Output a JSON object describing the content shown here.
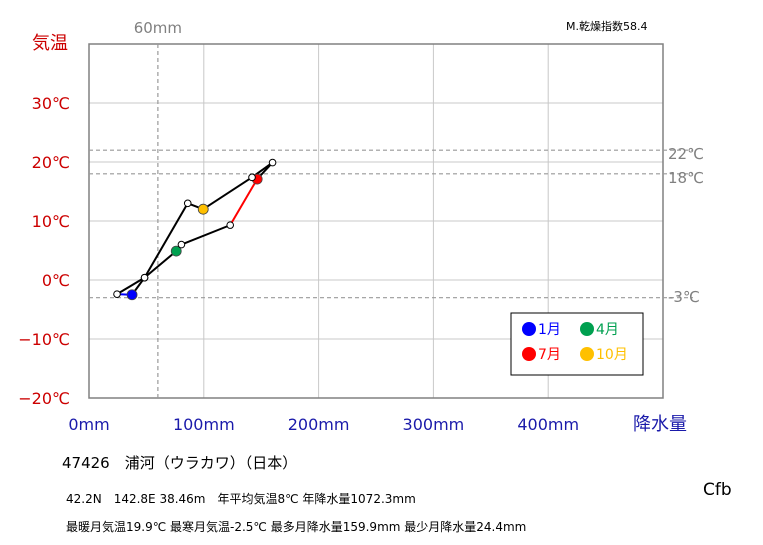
{
  "chart_data": {
    "type": "scatter",
    "title": "47426　浦河（ウラカワ）（日本）",
    "xlabel": "降水量",
    "ylabel": "気温",
    "xlim": [
      0,
      500
    ],
    "ylim": [
      -20,
      40
    ],
    "x_ticks": [
      "0mm",
      "100mm",
      "200mm",
      "300mm",
      "400mm"
    ],
    "x_tick_values": [
      0,
      100,
      200,
      300,
      400
    ],
    "y_ticks": [
      "−20℃",
      "−10℃",
      "0℃",
      "10℃",
      "20℃",
      "30℃"
    ],
    "y_tick_values": [
      -20,
      -10,
      0,
      10,
      20,
      30
    ],
    "grid": true,
    "months": [
      {
        "month": 1,
        "precip": 37.5,
        "temp": -2.5
      },
      {
        "month": 2,
        "precip": 24.4,
        "temp": -2.4
      },
      {
        "month": 3,
        "precip": 48.4,
        "temp": 0.4
      },
      {
        "month": 4,
        "precip": 76.0,
        "temp": 4.9
      },
      {
        "month": 5,
        "precip": 80.5,
        "temp": 6.0
      },
      {
        "month": 6,
        "precip": 123.0,
        "temp": 9.3
      },
      {
        "month": 7,
        "precip": 146.5,
        "temp": 17.1
      },
      {
        "month": 8,
        "precip": 159.9,
        "temp": 19.9
      },
      {
        "month": 9,
        "precip": 142.0,
        "temp": 17.4
      },
      {
        "month": 10,
        "precip": 99.5,
        "temp": 12.0
      },
      {
        "month": 11,
        "precip": 86.0,
        "temp": 13.0
      },
      {
        "month": 12,
        "precip": 48.4,
        "temp": 0.4
      }
    ],
    "highlight_months": [
      {
        "month": 1,
        "label": "1月",
        "color": "#0000ff"
      },
      {
        "month": 4,
        "label": "4月",
        "color": "#00a050"
      },
      {
        "month": 7,
        "label": "7月",
        "color": "#ff0000"
      },
      {
        "month": 10,
        "label": "10月",
        "color": "#ffc000"
      }
    ],
    "segment_colors": {
      "1": "#0000ff",
      "6": "#ff0000"
    },
    "default_line_color": "#000000",
    "reference_lines": {
      "precip": {
        "value": 60,
        "label": "60mm"
      },
      "temps": [
        {
          "value": 22,
          "label": "22℃"
        },
        {
          "value": 18,
          "label": "18℃"
        },
        {
          "value": -3,
          "label": "-3℃"
        }
      ]
    },
    "colors": {
      "y_axis_text": "#cc0000",
      "x_axis_text": "#1a1aaa",
      "reference_text": "#808080"
    }
  },
  "station_line": "47426　浦河（ウラカワ）（日本）",
  "info_line_1": "42.2N　142.8E 38.46m　年平均気温8℃ 年降水量1072.3mm",
  "info_line_2": "最暖月気温19.9℃ 最寒月気温-2.5℃ 最多月降水量159.9mm 最少月降水量24.4mm",
  "koppen": "Cfb",
  "dryness_index": "M.乾燥指数58.4"
}
